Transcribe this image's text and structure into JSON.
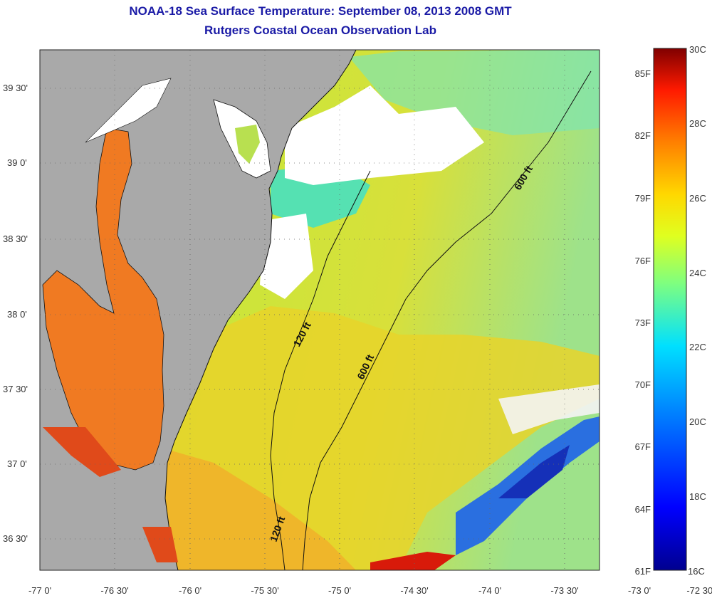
{
  "header": {
    "title": "NOAA-18 Sea Surface Temperature:  September 08, 2013 2008 GMT",
    "subtitle": "Rutgers Coastal Ocean Observation Lab"
  },
  "map": {
    "lat_labels": [
      "39 30'",
      "39 0'",
      "38 30'",
      "38 0'",
      "37 30'",
      "37 0'",
      "36 30'"
    ],
    "lon_labels": [
      "-77 0'",
      "-76 30'",
      "-76 0'",
      "-75 30'",
      "-75 0'",
      "-74 30'",
      "-74 0'",
      "-73 30'",
      "-73 0'",
      "-72 30'"
    ],
    "contour_labels": [
      "600 ft",
      "120 ft",
      "600 ft",
      "120 ft"
    ],
    "colors": {
      "land": "#a9a9a9",
      "cloud": "#ffffff",
      "water_warm": "#f08a22",
      "water_mid": "#c4e63a",
      "water_cool": "#28d8d8",
      "water_cold": "#1f4fd0"
    }
  },
  "colorbar": {
    "celsius_labels": [
      "30C",
      "28C",
      "26C",
      "24C",
      "22C",
      "20C",
      "18C",
      "16C"
    ],
    "fahrenheit_labels": [
      "85F",
      "82F",
      "79F",
      "76F",
      "73F",
      "70F",
      "67F",
      "64F",
      "61F"
    ],
    "range_c": [
      16,
      30
    ]
  }
}
